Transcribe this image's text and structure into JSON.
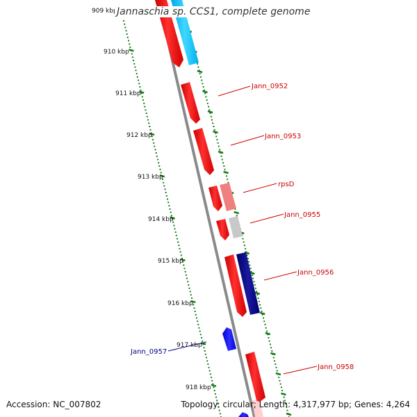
{
  "title": "Jannaschia sp. CCS1, complete genome",
  "footer": {
    "accession": "Accession: NC_007802",
    "stats": "Topology: circular; Length: 4,317,977 bp; Genes: 4,264"
  },
  "colors": {
    "backbone": "#8a8a8a",
    "tick_green": "#1a7a1a",
    "gene_red": "#ff0000",
    "gene_blue": "#0000ff",
    "gene_navy": "#000080",
    "gene_cyan": "#00c0ff",
    "gene_pink": "#f08080",
    "gene_gray": "#c8c8c8",
    "label_red": "#cc0000",
    "label_blue": "#00008b"
  },
  "ticks": [
    {
      "label": "909 kbp"
    },
    {
      "label": "910 kbp"
    },
    {
      "label": "911 kbp"
    },
    {
      "label": "912 kbp"
    },
    {
      "label": "913 kbp"
    },
    {
      "label": "914 kbp"
    },
    {
      "label": "915 kbp"
    },
    {
      "label": "916 kbp"
    },
    {
      "label": "917 kbp"
    },
    {
      "label": "918 kbp"
    }
  ],
  "gene_labels": [
    {
      "label": "Jann_0952",
      "color": "#cc0000"
    },
    {
      "label": "Jann_0953",
      "color": "#cc0000"
    },
    {
      "label": "rpsD",
      "color": "#cc0000"
    },
    {
      "label": "Jann_0955",
      "color": "#cc0000"
    },
    {
      "label": "Jann_0956",
      "color": "#cc0000"
    },
    {
      "label": "Jann_0957",
      "color": "#00008b"
    },
    {
      "label": "Jann_0958",
      "color": "#cc0000"
    }
  ]
}
